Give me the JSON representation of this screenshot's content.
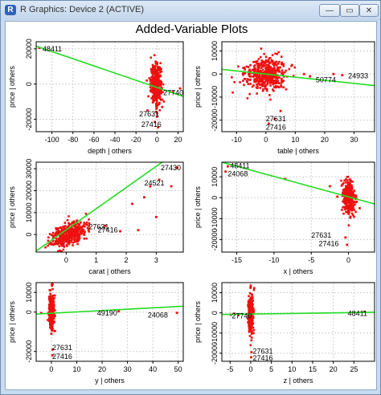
{
  "window": {
    "title": "R Graphics: Device 2 (ACTIVE)",
    "app_icon": "R",
    "controls": {
      "minimize": "—",
      "maximize": "▭",
      "close": "✕"
    }
  },
  "figure_title": "Added-Variable Plots",
  "colors": {
    "points": "#ee1111",
    "fit": "#22dd22",
    "grid": "#d0d0d0",
    "frame": "#000000"
  },
  "chart_data": [
    {
      "type": "scatter",
      "xlabel": "depth | others",
      "ylabel": "price | others",
      "xlim": [
        -115,
        25
      ],
      "ylim": [
        -27000,
        24000
      ],
      "xticks": [
        -100,
        -80,
        -60,
        -40,
        -20,
        0,
        20
      ],
      "yticks": [
        -20000,
        0,
        20000
      ],
      "fit": [
        [
          -115,
          21500
        ],
        [
          25,
          -7000
        ]
      ],
      "cloud": {
        "cx": -1,
        "cy": 0,
        "sx": 2.5,
        "sy": 5500,
        "n": 380,
        "rho": 0
      },
      "outliers": [
        [
          -112,
          20500
        ],
        [
          22,
          -2500
        ],
        [
          15,
          -4500
        ],
        [
          -5,
          -8000
        ],
        [
          5,
          -13000
        ],
        [
          -9,
          -15000
        ],
        [
          0,
          -18500
        ],
        [
          -2,
          -21500
        ],
        [
          1,
          -24500
        ]
      ],
      "labels": [
        {
          "text": "48411",
          "x": -109,
          "y": 20000
        },
        {
          "text": "27740",
          "x": 6,
          "y": -5000
        },
        {
          "text": "27631",
          "x": -17,
          "y": -17000
        },
        {
          "text": "27416",
          "x": -15,
          "y": -23000
        }
      ]
    },
    {
      "type": "scatter",
      "xlabel": "table | others",
      "ylabel": "price | others",
      "xlim": [
        -15,
        37
      ],
      "ylim": [
        -25000,
        14000
      ],
      "xticks": [
        -10,
        0,
        10,
        20,
        30
      ],
      "yticks": [
        -20000,
        -10000,
        0,
        10000
      ],
      "fit": [
        [
          -15,
          2000
        ],
        [
          37,
          -5000
        ]
      ],
      "cloud": {
        "cx": 0,
        "cy": 0,
        "sx": 3.5,
        "sy": 3500,
        "n": 420,
        "rho": 0
      },
      "outliers": [
        [
          13,
          0
        ],
        [
          15,
          -1000
        ],
        [
          23,
          0
        ],
        [
          26,
          -500
        ],
        [
          5,
          -16000
        ],
        [
          3,
          -19500
        ],
        [
          1,
          -21500
        ]
      ],
      "labels": [
        {
          "text": "50774",
          "x": 17,
          "y": -2500
        },
        {
          "text": "24933",
          "x": 28,
          "y": -800
        },
        {
          "text": "27631",
          "x": 0,
          "y": -19500
        },
        {
          "text": "27416",
          "x": 0,
          "y": -23000
        }
      ]
    },
    {
      "type": "scatter",
      "xlabel": "carat | others",
      "ylabel": "price | others",
      "xlim": [
        -1,
        3.9
      ],
      "ylim": [
        -8000,
        33000
      ],
      "xticks": [
        0,
        1,
        2,
        3
      ],
      "yticks": [
        0,
        10000,
        20000,
        30000
      ],
      "fit": [
        [
          -1,
          -7500
        ],
        [
          3.3,
          34000
        ]
      ],
      "cloud": {
        "cx": 0.1,
        "cy": 0,
        "sx": 0.3,
        "sy": 3000,
        "n": 400,
        "rho": 0.5
      },
      "outliers": [
        [
          1.3,
          4000
        ],
        [
          1.8,
          1500
        ],
        [
          2.4,
          2000
        ],
        [
          2.2,
          14000
        ],
        [
          2.6,
          17000
        ],
        [
          2.8,
          22000
        ],
        [
          3.1,
          25000
        ],
        [
          3.5,
          22000
        ],
        [
          3.7,
          30500
        ],
        [
          3.0,
          8000
        ]
      ],
      "labels": [
        {
          "text": "27430",
          "x": 3.15,
          "y": 30500
        },
        {
          "text": "24521",
          "x": 2.6,
          "y": 23500
        },
        {
          "text": "27631",
          "x": 0.75,
          "y": 3500
        },
        {
          "text": "27416",
          "x": 1.05,
          "y": 2000
        }
      ]
    },
    {
      "type": "scatter",
      "xlabel": "x | others",
      "ylabel": "price | others",
      "xlim": [
        -17,
        3.5
      ],
      "ylim": [
        -26000,
        17000
      ],
      "xticks": [
        -15,
        -10,
        -5,
        0
      ],
      "yticks": [
        -20000,
        -10000,
        0,
        10000
      ],
      "fit": [
        [
          -17,
          17000
        ],
        [
          3.5,
          -3000
        ]
      ],
      "cloud": {
        "cx": 0,
        "cy": 0,
        "sx": 0.4,
        "sy": 4000,
        "n": 380,
        "rho": -0.2
      },
      "outliers": [
        [
          -16.2,
          15000
        ],
        [
          -16.5,
          12500
        ],
        [
          -8.5,
          9000
        ],
        [
          -2.5,
          5500
        ],
        [
          -0.5,
          -2500
        ],
        [
          -1.5,
          500
        ],
        [
          -0.4,
          -19000
        ],
        [
          -0.2,
          -22500
        ],
        [
          1.5,
          -5000
        ]
      ],
      "labels": [
        {
          "text": "48411",
          "x": -15.9,
          "y": 15200
        },
        {
          "text": "24068",
          "x": -16.2,
          "y": 11500
        },
        {
          "text": "27631",
          "x": -5,
          "y": -18000
        },
        {
          "text": "27416",
          "x": -4,
          "y": -22000
        }
      ]
    },
    {
      "type": "scatter",
      "xlabel": "y | others",
      "ylabel": "price | others",
      "xlim": [
        -6,
        52
      ],
      "ylim": [
        -25000,
        15000
      ],
      "xticks": [
        0,
        10,
        20,
        30,
        40,
        50
      ],
      "yticks": [
        -20000,
        0,
        10000
      ],
      "fit": [
        [
          -6,
          -1000
        ],
        [
          52,
          3000
        ]
      ],
      "cloud": {
        "cx": 0,
        "cy": 0,
        "sx": 0.5,
        "sy": 4500,
        "n": 330,
        "rho": 0
      },
      "outliers": [
        [
          -4,
          -500
        ],
        [
          26.5,
          400
        ],
        [
          49.5,
          -400
        ],
        [
          0.5,
          -19000
        ],
        [
          0.4,
          -22000
        ],
        [
          0.2,
          13500
        ],
        [
          0,
          -11000
        ]
      ],
      "labels": [
        {
          "text": "49190",
          "x": 18,
          "y": -500
        },
        {
          "text": "24068",
          "x": 38,
          "y": -1600
        },
        {
          "text": "27631",
          "x": 0.3,
          "y": -18000
        },
        {
          "text": "27416",
          "x": 0.3,
          "y": -22500
        }
      ]
    },
    {
      "type": "scatter",
      "xlabel": "z | others",
      "ylabel": "price | others",
      "xlim": [
        -7,
        30
      ],
      "ylim": [
        -24000,
        15000
      ],
      "xticks": [
        -5,
        0,
        5,
        10,
        15,
        20,
        25
      ],
      "yticks": [
        -20000,
        -10000,
        0,
        10000
      ],
      "fit": [
        [
          -7,
          -800
        ],
        [
          30,
          300
        ]
      ],
      "cloud": {
        "cx": 0,
        "cy": 0,
        "sx": 0.3,
        "sy": 4500,
        "n": 330,
        "rho": 0
      },
      "outliers": [
        [
          -4.8,
          -900
        ],
        [
          -4,
          -400
        ],
        [
          -3,
          -1100
        ],
        [
          27.5,
          500
        ],
        [
          0.2,
          -19500
        ],
        [
          0.1,
          -22000
        ],
        [
          0,
          13500
        ]
      ],
      "labels": [
        {
          "text": "27740",
          "x": -4.6,
          "y": -1600
        },
        {
          "text": "48411",
          "x": 23.5,
          "y": -300
        },
        {
          "text": "27631",
          "x": 0.5,
          "y": -19000
        },
        {
          "text": "27416",
          "x": 0.5,
          "y": -22500
        }
      ]
    }
  ]
}
